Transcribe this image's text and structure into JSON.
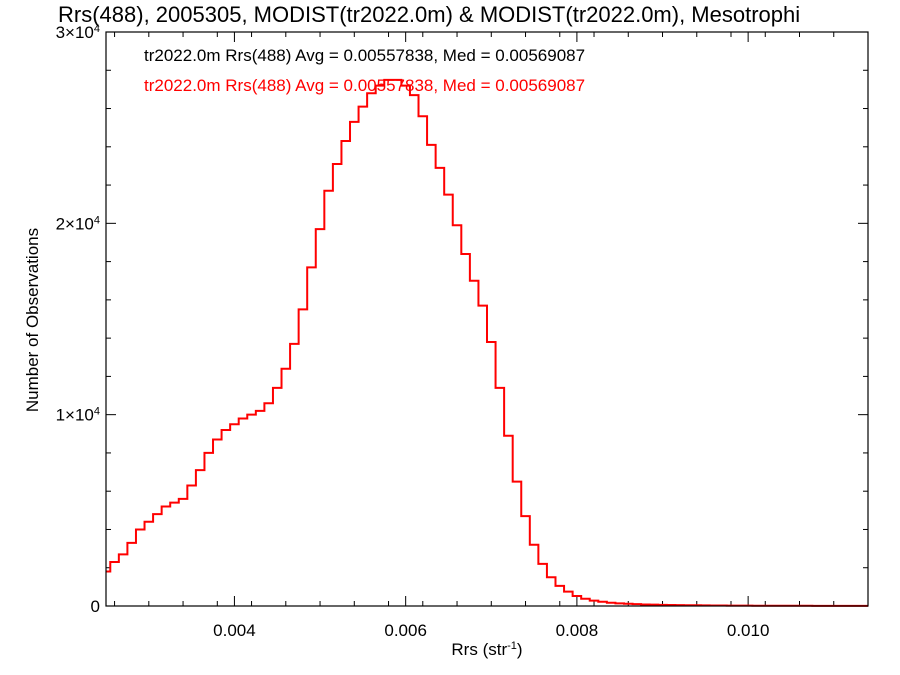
{
  "chart_data": {
    "type": "step-histogram",
    "title": "Rrs(488), 2005305, MODIST(tr2022.0m) & MODIST(tr2022.0m), Mesotrophi",
    "xlabel": "Rrs (str",
    "xlabel_sup": "-1",
    "xlabel_close": ")",
    "ylabel": "Number of Observations",
    "xlim": [
      0.0025,
      0.0114
    ],
    "ylim": [
      0,
      30000
    ],
    "x_ticks": [
      {
        "value": 0.004,
        "label": "0.004"
      },
      {
        "value": 0.006,
        "label": "0.006"
      },
      {
        "value": 0.008,
        "label": "0.008"
      },
      {
        "value": 0.01,
        "label": "0.010"
      }
    ],
    "y_ticks": [
      {
        "value": 0,
        "mant": "0",
        "exp": ""
      },
      {
        "value": 10000,
        "mant": "1×10",
        "exp": "4"
      },
      {
        "value": 20000,
        "mant": "2×10",
        "exp": "4"
      },
      {
        "value": 30000,
        "mant": "3×10",
        "exp": "4"
      }
    ],
    "annotations": [
      {
        "text": "tr2022.0m Rrs(488) Avg = 0.00557838, Med = 0.00569087",
        "color": "#000000"
      },
      {
        "text": "tr2022.0m Rrs(488) Avg = 0.00557838, Med = 0.00569087",
        "color": "#ff0000"
      }
    ],
    "series": [
      {
        "color": "#ff0000",
        "points": [
          [
            0.0025,
            1800
          ],
          [
            0.0026,
            2300
          ],
          [
            0.0027,
            2700
          ],
          [
            0.0028,
            3300
          ],
          [
            0.0029,
            4000
          ],
          [
            0.003,
            4400
          ],
          [
            0.0031,
            4800
          ],
          [
            0.0032,
            5200
          ],
          [
            0.0033,
            5400
          ],
          [
            0.0034,
            5600
          ],
          [
            0.0035,
            6300
          ],
          [
            0.0036,
            7100
          ],
          [
            0.0037,
            8000
          ],
          [
            0.0038,
            8700
          ],
          [
            0.0039,
            9200
          ],
          [
            0.004,
            9500
          ],
          [
            0.0041,
            9800
          ],
          [
            0.0042,
            10000
          ],
          [
            0.0043,
            10200
          ],
          [
            0.0044,
            10600
          ],
          [
            0.0045,
            11400
          ],
          [
            0.0046,
            12400
          ],
          [
            0.0047,
            13700
          ],
          [
            0.0048,
            15500
          ],
          [
            0.0049,
            17700
          ],
          [
            0.005,
            19700
          ],
          [
            0.0051,
            21700
          ],
          [
            0.0052,
            23100
          ],
          [
            0.0053,
            24300
          ],
          [
            0.0054,
            25300
          ],
          [
            0.0055,
            26100
          ],
          [
            0.0056,
            26800
          ],
          [
            0.0057,
            27200
          ],
          [
            0.0058,
            27500
          ],
          [
            0.0059,
            27500
          ],
          [
            0.006,
            27200
          ],
          [
            0.0061,
            26700
          ],
          [
            0.0062,
            25600
          ],
          [
            0.0063,
            24100
          ],
          [
            0.0064,
            22900
          ],
          [
            0.0065,
            21500
          ],
          [
            0.0066,
            19900
          ],
          [
            0.0067,
            18400
          ],
          [
            0.0068,
            17000
          ],
          [
            0.0069,
            15700
          ],
          [
            0.007,
            13800
          ],
          [
            0.0071,
            11400
          ],
          [
            0.0072,
            8900
          ],
          [
            0.0073,
            6500
          ],
          [
            0.0074,
            4700
          ],
          [
            0.0075,
            3200
          ],
          [
            0.0076,
            2200
          ],
          [
            0.0077,
            1500
          ],
          [
            0.0078,
            1050
          ],
          [
            0.0079,
            750
          ],
          [
            0.008,
            520
          ],
          [
            0.0081,
            380
          ],
          [
            0.0082,
            280
          ],
          [
            0.0083,
            220
          ],
          [
            0.0084,
            170
          ],
          [
            0.0085,
            140
          ],
          [
            0.0086,
            115
          ],
          [
            0.0087,
            95
          ],
          [
            0.0088,
            80
          ],
          [
            0.0089,
            70
          ],
          [
            0.009,
            60
          ],
          [
            0.0091,
            52
          ],
          [
            0.0092,
            46
          ],
          [
            0.0093,
            40
          ],
          [
            0.0094,
            36
          ],
          [
            0.0095,
            32
          ],
          [
            0.0096,
            28
          ],
          [
            0.0097,
            25
          ],
          [
            0.0098,
            22
          ],
          [
            0.0099,
            20
          ],
          [
            0.01,
            18
          ],
          [
            0.0101,
            16
          ],
          [
            0.0102,
            15
          ],
          [
            0.0103,
            14
          ],
          [
            0.0104,
            13
          ],
          [
            0.0105,
            12
          ],
          [
            0.0106,
            11
          ],
          [
            0.0107,
            10
          ],
          [
            0.0108,
            9
          ],
          [
            0.0109,
            8
          ],
          [
            0.011,
            8
          ],
          [
            0.0111,
            7
          ],
          [
            0.0112,
            7
          ],
          [
            0.0113,
            6
          ],
          [
            0.0114,
            6
          ]
        ]
      }
    ]
  }
}
